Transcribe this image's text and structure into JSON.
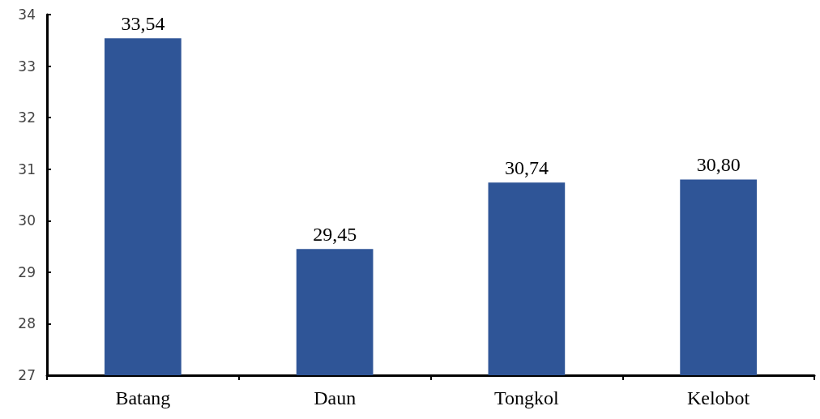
{
  "chart_data": {
    "type": "bar",
    "categories": [
      "Batang",
      "Daun",
      "Tongkol",
      "Kelobot"
    ],
    "values": [
      33.54,
      29.45,
      30.74,
      30.8
    ],
    "value_labels": [
      "33,54",
      "29,45",
      "30,74",
      "30,80"
    ],
    "color": "#2f5597",
    "ylim": [
      27,
      34
    ],
    "yticks": [
      27,
      28,
      29,
      30,
      31,
      32,
      33,
      34
    ]
  }
}
